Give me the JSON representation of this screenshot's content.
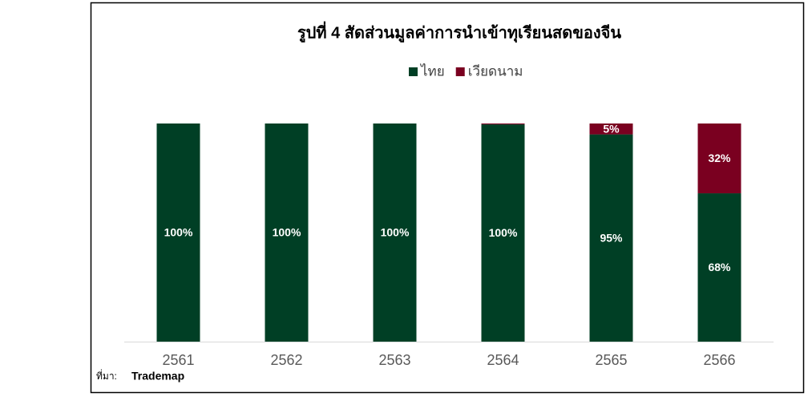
{
  "chart_data": {
    "type": "stacked_bar",
    "title": "รูปที่  4 สัดส่วนมูลค่าการนำเข้าทุเรียนสดของจีน",
    "categories": [
      "2561",
      "2562",
      "2563",
      "2564",
      "2565",
      "2566"
    ],
    "series": [
      {
        "name": "ไทย",
        "color": "#003f25",
        "values": [
          100,
          100,
          100,
          99.6,
          95,
          68
        ],
        "value_labels": [
          "100%",
          "100%",
          "100%",
          "100%",
          "95%",
          "68%"
        ]
      },
      {
        "name": "เวียดนาม",
        "color": "#7a0020",
        "values": [
          0,
          0,
          0,
          0.4,
          5,
          32
        ],
        "value_labels": [
          null,
          null,
          null,
          null,
          "5%",
          "32%"
        ]
      }
    ],
    "ylim": [
      0,
      100
    ],
    "legend": "top",
    "source_prefix": "ที่มา:",
    "source": "Trademap"
  }
}
